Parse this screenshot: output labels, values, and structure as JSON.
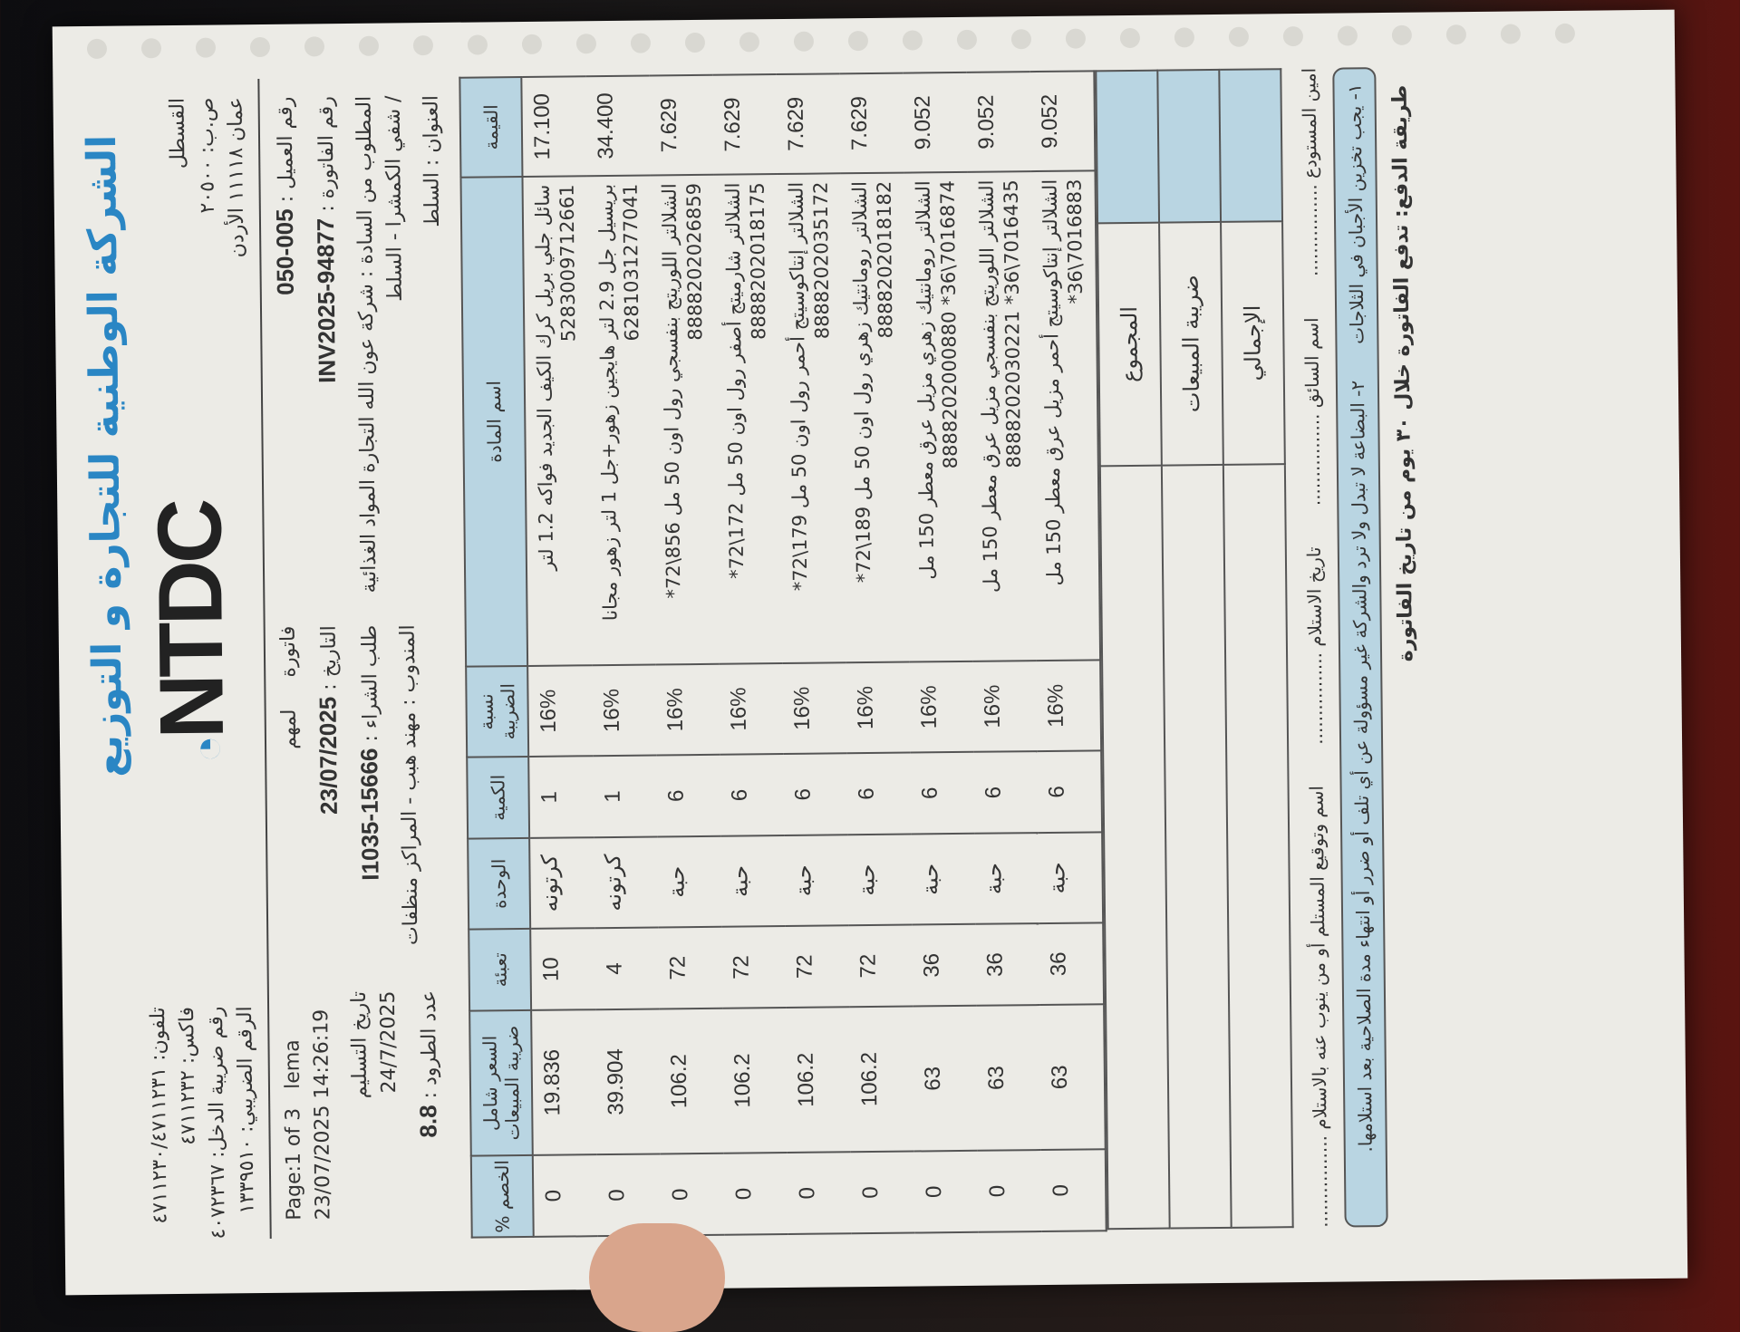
{
  "company": {
    "name": "الشركة الوطنية للتجارة و التوزيع",
    "logo": "NTDC",
    "address": [
      "القسطل",
      "ص.ب: ٢٠٥٠٠",
      "عمان ١١١١٨ الأردن"
    ],
    "phones": [
      "تلفون: ٤٧١١٢٣٠/٤٧١١٢٣١",
      "فاكس: ٤٧١١٢٣٢",
      "رقم ضريبة الدخل: ٤٠٧٢٣٦٧",
      "الرقم الضريبي: ١٣٣٩٥١٠"
    ]
  },
  "info": {
    "page": "Page:1 of 3",
    "print_date": "24/7/2025",
    "user": "lema",
    "timestamp": "23/07/2025 14:26:19",
    "doc_type": "فاتورة",
    "note": "لمهم",
    "date_label": "التاريخ :",
    "date": "23/07/2025",
    "delivery_label": "تاريخ التسليم",
    "po_label": "طلب الشراء :",
    "po": "I1035-15666",
    "packages_label": "عدد الطرود :",
    "packages": "8.8",
    "customer_no_label": "رقم العميل :",
    "customer_no": "005-050",
    "invoice_no_label": "رقم الفاتورة :",
    "invoice_no": "INV2025-94877",
    "bill_to_label": "المطلوب من السادة :",
    "bill_to": "شركة عون الله التجارة المواد الغذائية / شفي الكمشرا - السلط",
    "address_label": "العنوان :",
    "address": "السلط",
    "rep_label": "المندوب :",
    "rep": "مهند هبب - المراكز منظفات"
  },
  "table": {
    "headers": [
      "القيمة",
      "اسم المادة",
      "نسبة الضريبة",
      "الكمية",
      "الوحدة",
      "تعبئة",
      "السعر شامل ضريبة المبيعات",
      "الخصم %"
    ],
    "rows": [
      [
        "17.100",
        "سائل جلي بريل كرك الكيف الجديد فواكه 1.2 لتر 5283009712661",
        "16%",
        "1",
        "كرتونه",
        "10",
        "19.836",
        "0"
      ],
      [
        "34.400",
        "بريسيل جل 2.9 لتر هايجين زهور+جل 1 لتر زهور مجانا 6281031277041",
        "16%",
        "1",
        "كرتونه",
        "4",
        "39.904",
        "0"
      ],
      [
        "7.629",
        "الشلالتر اللوريتج بنفسجي رول اون 50 مل 856\\72* 8888202026859",
        "16%",
        "6",
        "حبة",
        "72",
        "106.2",
        "0"
      ],
      [
        "7.629",
        "الشلالتر شارميتج أصفر رول اون 50 مل 172\\72* 8888202018175",
        "16%",
        "6",
        "حبة",
        "72",
        "106.2",
        "0"
      ],
      [
        "7.629",
        "الشلالتر إنتاكوسيتج أحمر رول اون 50 مل 179\\72* 8888202035172",
        "16%",
        "6",
        "حبة",
        "72",
        "106.2",
        "0"
      ],
      [
        "7.629",
        "الشلالتر رومانتيك زهري رول اون 50 مل 189\\72* 8888202018182",
        "16%",
        "6",
        "حبة",
        "72",
        "106.2",
        "0"
      ],
      [
        "9.052",
        "الشلالتر رومانتيك زهري مزيل عرق معطر 150 مل 7016874\\36* 8888202000880",
        "16%",
        "6",
        "حبة",
        "36",
        "63",
        "0"
      ],
      [
        "9.052",
        "الشلالتر اللوريتج بنفسجي مزيل عرق معطر 150 مل 7016435\\36* 8888202030221",
        "16%",
        "6",
        "حبة",
        "36",
        "63",
        "0"
      ],
      [
        "9.052",
        "الشلالتر إنتاكوسيتج أحمر مزيل عرق معطر 150 مل 7016883\\36*",
        "16%",
        "6",
        "حبة",
        "36",
        "63",
        "0"
      ]
    ]
  },
  "totals": {
    "subtotal_label": "المجموع",
    "tax_label": "ضريبة المبيعات",
    "grand_label": "الإجمالي"
  },
  "signatures": [
    "امين المستودع ................",
    "اسم السائق ................",
    "تاريخ الاستلام ................",
    "اسم وتوقيع المستلم أو من ينوب عنه بالاستلام ................"
  ],
  "notes": [
    "١- يجب تخزين الأجبان في الثلاجات",
    "٢- البضاعة لا تبدل ولا ترد والشركة غير مسؤولة عن أي تلف أو ضرر أو انتهاء مدة الصلاحية بعد استلامها."
  ],
  "payment": "طريقة الدفع: تدفع الفاتورة خلال ٣٠ يوم من تاريخ الفاتورة",
  "colors": {
    "brand": "#2a86c4",
    "header_fill": "#b9d5e2"
  }
}
